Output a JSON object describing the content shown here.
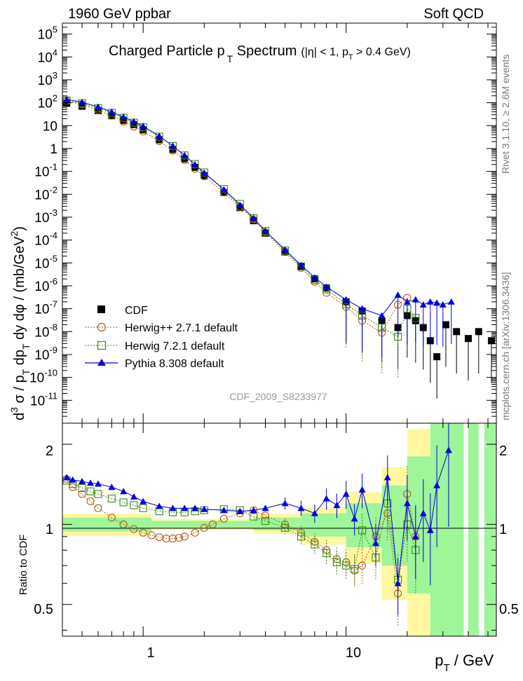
{
  "header": {
    "left": "1960 GeV ppbar",
    "right": "Soft QCD"
  },
  "side": {
    "rivet": "Rivet 3.1.10, ≥ 2.6M events",
    "mcplots": "mcplots.cern.ch [arXiv:1306.3436]"
  },
  "title": {
    "main_a": "Charged Particle p",
    "main_sub": "T",
    "main_b": " Spectrum",
    "cut_a": "(|η| < 1, p",
    "cut_sub": "T",
    "cut_b": " > 0.4 GeV)"
  },
  "analysis_id": "CDF_2009_S8233977",
  "axes": {
    "ylabel_top": "d³σ / p_T dp_T dy dφ / (mb/GeV²)",
    "ylabel_ratio": "Ratio to CDF",
    "xlabel": "p_T / GeV"
  },
  "legend": [
    {
      "label": "CDF",
      "color": "#000000",
      "marker": "square-filled"
    },
    {
      "label": "Herwig++ 2.7.1 default",
      "color": "#b25c14",
      "marker": "circle-open"
    },
    {
      "label": "Herwig 7.2.1 default",
      "color": "#3a8a10",
      "marker": "square-open"
    },
    {
      "label": "Pythia 8.308 default",
      "color": "#0000e0",
      "marker": "triangle-filled"
    }
  ],
  "chart_data": {
    "type": "scatter",
    "x_scale": "log",
    "y_scale_top": "log",
    "y_scale_ratio": "log",
    "xlim": [
      0.4,
      55
    ],
    "ylim_top": [
      1e-12,
      300000.0
    ],
    "ylim_ratio": [
      0.38,
      2.4
    ],
    "x_ticks": [
      1,
      10
    ],
    "y_ticks_top": [
      "10^{-11}",
      "10^{-10}",
      "10^{-9}",
      "10^{-8}",
      "10^{-7}",
      "10^{-6}",
      "10^{-5}",
      "10^{-4}",
      "10^{-3}",
      "10^{-2}",
      "10^{-1}",
      "1",
      "10",
      "10^{2}",
      "10^{3}",
      "10^{4}",
      "10^{5}"
    ],
    "y_ticks_ratio": [
      0.5,
      1,
      2
    ],
    "series": [
      {
        "name": "CDF",
        "points": [
          [
            0.42,
            95
          ],
          [
            0.5,
            70
          ],
          [
            0.6,
            45
          ],
          [
            0.7,
            27
          ],
          [
            0.8,
            17
          ],
          [
            0.9,
            11
          ],
          [
            1.0,
            6.5
          ],
          [
            1.2,
            2.4
          ],
          [
            1.4,
            0.9
          ],
          [
            1.6,
            0.35
          ],
          [
            1.8,
            0.15
          ],
          [
            2.0,
            0.065
          ],
          [
            2.5,
            0.012
          ],
          [
            3.0,
            0.0026
          ],
          [
            3.5,
            0.0007
          ],
          [
            4.0,
            0.0002
          ],
          [
            5.0,
            3e-05
          ],
          [
            6.0,
            7e-06
          ],
          [
            7.0,
            2e-06
          ],
          [
            8.0,
            8e-07
          ],
          [
            10.0,
            2e-07
          ],
          [
            12.0,
            8e-08
          ],
          [
            15.0,
            3e-08
          ],
          [
            18.0,
            1.5e-08
          ],
          [
            20.0,
            5e-08
          ],
          [
            22.0,
            3e-08
          ],
          [
            24.0,
            1.5e-08
          ],
          [
            26.0,
            4e-09
          ],
          [
            28.0,
            8e-10
          ],
          [
            31.0,
            2e-08
          ],
          [
            35.0,
            1e-08
          ],
          [
            40.0,
            5e-09
          ],
          [
            45.0,
            1e-08
          ],
          [
            52.0,
            4e-09
          ]
        ]
      },
      {
        "name": "Herwig++ 2.7.1 default",
        "points": [
          [
            0.42,
            120
          ],
          [
            0.5,
            85
          ],
          [
            0.6,
            48
          ],
          [
            0.7,
            27
          ],
          [
            0.8,
            15
          ],
          [
            0.9,
            9
          ],
          [
            1.0,
            5.5
          ],
          [
            1.2,
            2.1
          ],
          [
            1.4,
            0.8
          ],
          [
            1.6,
            0.31
          ],
          [
            1.8,
            0.13
          ],
          [
            2.0,
            0.06
          ],
          [
            2.5,
            0.012
          ],
          [
            3.0,
            0.0028
          ],
          [
            3.5,
            0.0008
          ],
          [
            4.0,
            0.00022
          ],
          [
            5.0,
            3e-05
          ],
          [
            6.0,
            6e-06
          ],
          [
            7.0,
            1.5e-06
          ],
          [
            8.0,
            5e-07
          ],
          [
            10.0,
            1.2e-07
          ],
          [
            12.0,
            3e-08
          ],
          [
            15.0,
            9e-09
          ],
          [
            18.0,
            1.5e-07
          ],
          [
            20.0,
            3e-07
          ]
        ]
      },
      {
        "name": "Herwig 7.2.1 default",
        "points": [
          [
            0.42,
            125
          ],
          [
            0.5,
            95
          ],
          [
            0.6,
            58
          ],
          [
            0.7,
            36
          ],
          [
            0.8,
            22
          ],
          [
            0.9,
            13.5
          ],
          [
            1.0,
            8.5
          ],
          [
            1.2,
            3.3
          ],
          [
            1.4,
            1.3
          ],
          [
            1.6,
            0.5
          ],
          [
            1.8,
            0.21
          ],
          [
            2.0,
            0.09
          ],
          [
            2.5,
            0.017
          ],
          [
            3.0,
            0.0038
          ],
          [
            3.5,
            0.0009
          ],
          [
            4.0,
            0.00025
          ],
          [
            5.0,
            3.5e-05
          ],
          [
            6.0,
            7e-06
          ],
          [
            7.0,
            1.8e-06
          ],
          [
            8.0,
            7e-07
          ],
          [
            10.0,
            1.6e-07
          ],
          [
            12.0,
            5e-08
          ],
          [
            15.0,
            1.5e-08
          ],
          [
            18.0,
            6e-09
          ],
          [
            20.0,
            1e-07
          ],
          [
            22.0,
            4e-08
          ]
        ]
      },
      {
        "name": "Pythia 8.308 default",
        "points": [
          [
            0.42,
            140
          ],
          [
            0.5,
            105
          ],
          [
            0.6,
            66
          ],
          [
            0.7,
            40
          ],
          [
            0.8,
            24
          ],
          [
            0.9,
            15
          ],
          [
            1.0,
            9.5
          ],
          [
            1.2,
            3.5
          ],
          [
            1.4,
            1.3
          ],
          [
            1.6,
            0.5
          ],
          [
            1.8,
            0.2
          ],
          [
            2.0,
            0.085
          ],
          [
            2.5,
            0.016
          ],
          [
            3.0,
            0.0034
          ],
          [
            3.5,
            0.0009
          ],
          [
            4.0,
            0.00025
          ],
          [
            5.0,
            3.8e-05
          ],
          [
            6.0,
            8e-06
          ],
          [
            7.0,
            2.3e-06
          ],
          [
            8.0,
            9e-07
          ],
          [
            10.0,
            2.5e-07
          ],
          [
            12.0,
            1e-07
          ],
          [
            15.0,
            5e-08
          ],
          [
            18.0,
            4e-07
          ],
          [
            20.0,
            2e-07
          ],
          [
            22.0,
            2.5e-07
          ],
          [
            24.0,
            1.5e-07
          ],
          [
            26.0,
            2e-07
          ],
          [
            28.0,
            1.8e-07
          ],
          [
            30.0,
            1.5e-07
          ],
          [
            33.0,
            2e-07
          ]
        ]
      }
    ],
    "ratio_series": [
      {
        "name": "Herwig++ 2.7.1 default",
        "points": [
          [
            0.42,
            1.48
          ],
          [
            0.45,
            1.38
          ],
          [
            0.5,
            1.3
          ],
          [
            0.55,
            1.22
          ],
          [
            0.6,
            1.15
          ],
          [
            0.7,
            1.06
          ],
          [
            0.8,
            1.0
          ],
          [
            0.9,
            0.96
          ],
          [
            1.0,
            0.93
          ],
          [
            1.1,
            0.91
          ],
          [
            1.2,
            0.895
          ],
          [
            1.3,
            0.885
          ],
          [
            1.4,
            0.885
          ],
          [
            1.5,
            0.89
          ],
          [
            1.6,
            0.9
          ],
          [
            1.8,
            0.93
          ],
          [
            2.0,
            0.97
          ],
          [
            2.2,
            1.0
          ],
          [
            2.5,
            1.05
          ],
          [
            3.0,
            1.1
          ],
          [
            3.5,
            1.13
          ],
          [
            4.0,
            1.08
          ],
          [
            5.0,
            1.0
          ],
          [
            6.0,
            0.93
          ],
          [
            7.0,
            0.86
          ],
          [
            8.0,
            0.8
          ],
          [
            9.0,
            0.74
          ],
          [
            10.0,
            0.72
          ],
          [
            11.0,
            0.67
          ],
          [
            12.0,
            0.7
          ],
          [
            14.0,
            0.9
          ],
          [
            16.0,
            1.1
          ],
          [
            18.0,
            0.55
          ],
          [
            20.0,
            1.3
          ],
          [
            22.0,
            0.9
          ]
        ]
      },
      {
        "name": "Herwig 7.2.1 default",
        "points": [
          [
            0.42,
            1.46
          ],
          [
            0.45,
            1.42
          ],
          [
            0.5,
            1.37
          ],
          [
            0.55,
            1.33
          ],
          [
            0.6,
            1.3
          ],
          [
            0.7,
            1.25
          ],
          [
            0.8,
            1.21
          ],
          [
            0.9,
            1.18
          ],
          [
            1.0,
            1.15
          ],
          [
            1.2,
            1.12
          ],
          [
            1.4,
            1.11
          ],
          [
            1.6,
            1.11
          ],
          [
            1.8,
            1.12
          ],
          [
            2.0,
            1.13
          ],
          [
            2.5,
            1.14
          ],
          [
            3.0,
            1.13
          ],
          [
            3.5,
            1.07
          ],
          [
            4.0,
            1.03
          ],
          [
            5.0,
            0.97
          ],
          [
            6.0,
            0.9
          ],
          [
            7.0,
            0.84
          ],
          [
            8.0,
            0.78
          ],
          [
            9.0,
            0.72
          ],
          [
            10.0,
            0.7
          ],
          [
            11.0,
            0.68
          ],
          [
            12.0,
            0.95
          ],
          [
            14.0,
            0.75
          ],
          [
            16.0,
            1.2
          ],
          [
            18.0,
            0.62
          ],
          [
            20.0,
            1.0
          ],
          [
            22.0,
            0.8
          ]
        ]
      },
      {
        "name": "Pythia 8.308 default",
        "points": [
          [
            0.42,
            1.5
          ],
          [
            0.45,
            1.47
          ],
          [
            0.5,
            1.45
          ],
          [
            0.55,
            1.43
          ],
          [
            0.6,
            1.42
          ],
          [
            0.7,
            1.38
          ],
          [
            0.8,
            1.33
          ],
          [
            0.9,
            1.27
          ],
          [
            1.0,
            1.22
          ],
          [
            1.2,
            1.17
          ],
          [
            1.4,
            1.15
          ],
          [
            1.6,
            1.15
          ],
          [
            1.8,
            1.15
          ],
          [
            2.0,
            1.14
          ],
          [
            2.5,
            1.13
          ],
          [
            3.0,
            1.12
          ],
          [
            3.5,
            1.13
          ],
          [
            4.0,
            1.15
          ],
          [
            5.0,
            1.2
          ],
          [
            6.0,
            1.15
          ],
          [
            7.0,
            1.1
          ],
          [
            8.0,
            1.25
          ],
          [
            9.0,
            1.18
          ],
          [
            10.0,
            1.3
          ],
          [
            11.0,
            1.05
          ],
          [
            12.0,
            1.35
          ],
          [
            14.0,
            0.85
          ],
          [
            16.0,
            1.5
          ],
          [
            18.0,
            0.6
          ],
          [
            20.0,
            1.2
          ],
          [
            22.0,
            0.9
          ],
          [
            24.0,
            1.1
          ],
          [
            26.0,
            0.95
          ],
          [
            28.0,
            1.4
          ],
          [
            32.0,
            1.9
          ]
        ]
      }
    ]
  }
}
